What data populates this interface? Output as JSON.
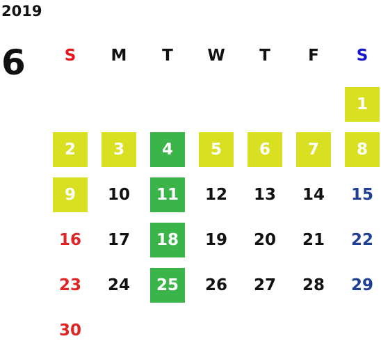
{
  "year": "2019",
  "month": "6",
  "weekdays": [
    {
      "label": "S",
      "color": "#e8141b"
    },
    {
      "label": "M",
      "color": "#111111"
    },
    {
      "label": "T",
      "color": "#111111"
    },
    {
      "label": "W",
      "color": "#111111"
    },
    {
      "label": "T",
      "color": "#111111"
    },
    {
      "label": "F",
      "color": "#111111"
    },
    {
      "label": "S",
      "color": "#1414d0"
    }
  ],
  "day_colors": [
    "#e02424",
    "#111111",
    "#111111",
    "#111111",
    "#111111",
    "#111111",
    "#1f3f95"
  ],
  "weeks": [
    [
      null,
      null,
      null,
      null,
      null,
      null,
      {
        "day": 1,
        "fill": "#d8e021"
      }
    ],
    [
      {
        "day": 2,
        "fill": "#d8e021"
      },
      {
        "day": 3,
        "fill": "#d8e021"
      },
      {
        "day": 4,
        "fill": "#3bb54a"
      },
      {
        "day": 5,
        "fill": "#d8e021"
      },
      {
        "day": 6,
        "fill": "#d8e021"
      },
      {
        "day": 7,
        "fill": "#d8e021"
      },
      {
        "day": 8,
        "fill": "#d8e021"
      }
    ],
    [
      {
        "day": 9,
        "fill": "#d8e021"
      },
      {
        "day": 10
      },
      {
        "day": 11,
        "fill": "#3bb54a"
      },
      {
        "day": 12
      },
      {
        "day": 13
      },
      {
        "day": 14
      },
      {
        "day": 15
      }
    ],
    [
      {
        "day": 16
      },
      {
        "day": 17
      },
      {
        "day": 18,
        "fill": "#3bb54a"
      },
      {
        "day": 19
      },
      {
        "day": 20
      },
      {
        "day": 21
      },
      {
        "day": 22
      }
    ],
    [
      {
        "day": 23
      },
      {
        "day": 24
      },
      {
        "day": 25,
        "fill": "#3bb54a"
      },
      {
        "day": 26
      },
      {
        "day": 27
      },
      {
        "day": 28
      },
      {
        "day": 29
      }
    ],
    [
      {
        "day": 30
      },
      null,
      null,
      null,
      null,
      null,
      null
    ]
  ]
}
